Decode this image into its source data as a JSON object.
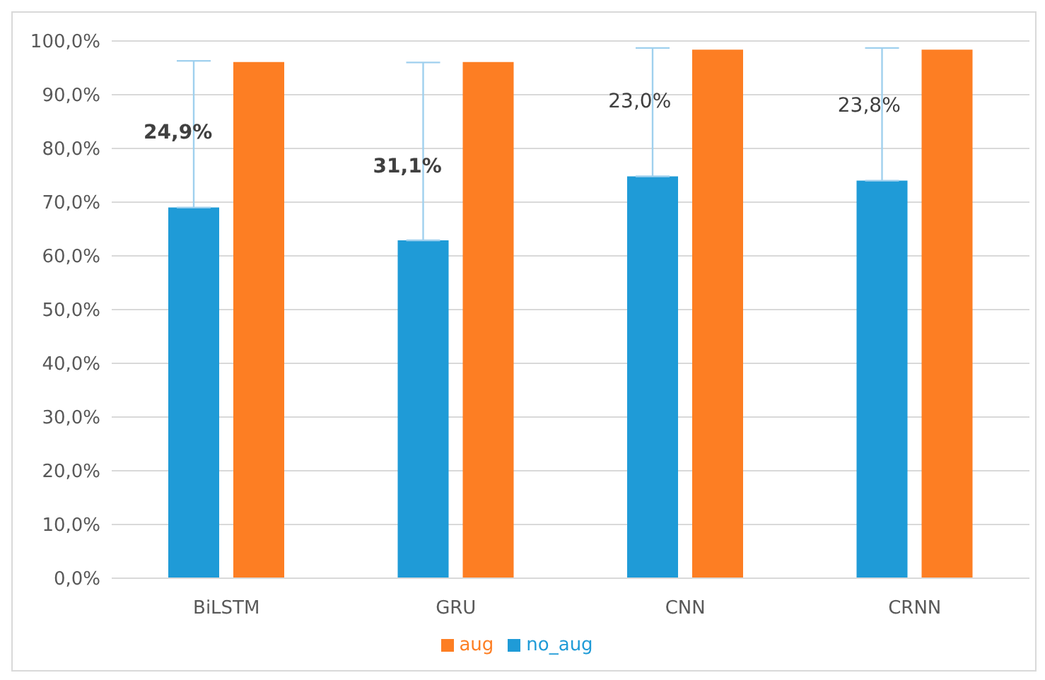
{
  "chart_data": {
    "type": "bar",
    "categories": [
      "BiLSTM",
      "GRU",
      "CNN",
      "CRNN"
    ],
    "series": [
      {
        "name": "no_aug",
        "color": "#1f9bd7",
        "values": [
          69.0,
          62.9,
          74.8,
          74.0
        ],
        "errors": [
          [
            69.0,
            96.3
          ],
          [
            62.9,
            96.0
          ],
          [
            74.8,
            98.7
          ],
          [
            74.0,
            98.7
          ]
        ]
      },
      {
        "name": "aug",
        "color": "#fd7e23",
        "values": [
          96.1,
          96.1,
          98.4,
          98.4
        ]
      }
    ],
    "ylim": [
      0,
      100
    ],
    "yticks": [
      {
        "value": 0,
        "label": "0,0%"
      },
      {
        "value": 10,
        "label": "10,0%"
      },
      {
        "value": 20,
        "label": "20,0%"
      },
      {
        "value": 30,
        "label": "30,0%"
      },
      {
        "value": 40,
        "label": "40,0%"
      },
      {
        "value": 50,
        "label": "50,0%"
      },
      {
        "value": 60,
        "label": "60,0%"
      },
      {
        "value": 70,
        "label": "70,0%"
      },
      {
        "value": 80,
        "label": "80,0%"
      },
      {
        "value": 90,
        "label": "90,0%"
      },
      {
        "value": 100,
        "label": "100,0%"
      }
    ],
    "grid": "y",
    "legend": "bottom",
    "annotations": [
      {
        "text": "24,9%",
        "x": "BiLSTM",
        "y": 83.2
      },
      {
        "text": "31,1%",
        "x": "GRU",
        "y": 76.8
      },
      {
        "text": "23,0%",
        "x": "CNN",
        "y": 89.0
      },
      {
        "text": "23,8%",
        "x": "CRNN",
        "y": 88.2
      }
    ]
  }
}
